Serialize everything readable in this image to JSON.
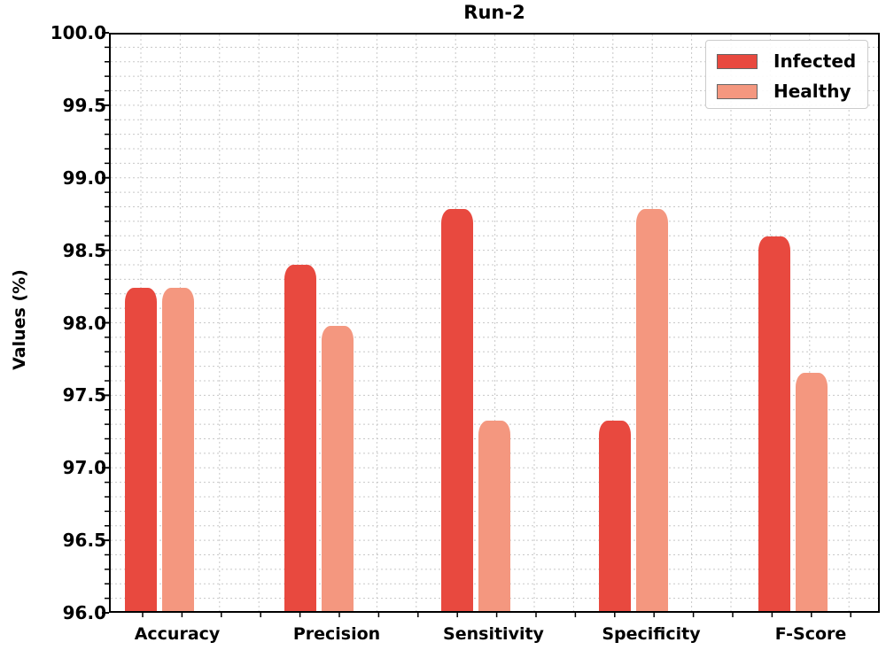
{
  "chart_data": {
    "type": "bar",
    "title": "Run-2",
    "xlabel": "",
    "ylabel": "Values (%)",
    "ylim": [
      96.0,
      100.0
    ],
    "yticks": [
      "96.0",
      "96.5",
      "97.0",
      "97.5",
      "98.0",
      "98.5",
      "99.0",
      "99.5",
      "100.0"
    ],
    "categories": [
      "Accuracy",
      "Precision",
      "Sensitivity",
      "Specificity",
      "F-Score"
    ],
    "series": [
      {
        "name": "Infected",
        "color": "#e8493f",
        "values": [
          98.24,
          98.4,
          98.79,
          97.32,
          98.6
        ]
      },
      {
        "name": "Healthy",
        "color": "#f4977f",
        "values": [
          98.24,
          97.98,
          97.32,
          98.79,
          97.65
        ]
      }
    ],
    "grid": true,
    "legend_position": "upper right"
  },
  "legend": {
    "items": [
      {
        "label": "Infected"
      },
      {
        "label": "Healthy"
      }
    ]
  }
}
